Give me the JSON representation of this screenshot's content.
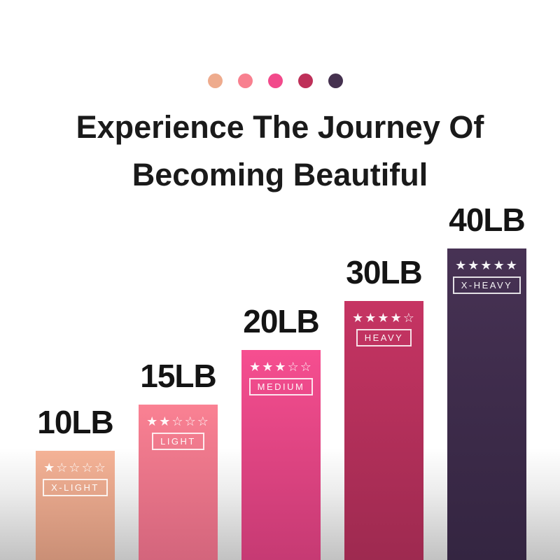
{
  "header": {
    "title_line1": "Experience The Journey Of",
    "title_line2": "Becoming Beautiful",
    "dot_colors": [
      "#EEAB8D",
      "#F8808F",
      "#F24A8B",
      "#BE3059",
      "#45314F"
    ]
  },
  "chart_data": {
    "type": "bar",
    "title": "Experience The Journey Of Becoming Beautiful",
    "categories": [
      "10LB",
      "15LB",
      "20LB",
      "30LB",
      "40LB"
    ],
    "values": [
      10,
      15,
      20,
      30,
      40
    ],
    "legend_position": "none",
    "grid": false,
    "bars": [
      {
        "label": "10LB",
        "weight_lb": 10,
        "stars_filled": 1,
        "stars_total": 5,
        "band_label": "X-LIGHT",
        "color_top": "#F4B296",
        "color_bottom": "#CA8F76"
      },
      {
        "label": "15LB",
        "weight_lb": 15,
        "stars_filled": 2,
        "stars_total": 5,
        "band_label": "LIGHT",
        "color_top": "#FA8193",
        "color_bottom": "#D3657C"
      },
      {
        "label": "20LB",
        "weight_lb": 20,
        "stars_filled": 3,
        "stars_total": 5,
        "band_label": "MEDIUM",
        "color_top": "#F64E90",
        "color_bottom": "#C63A73"
      },
      {
        "label": "30LB",
        "weight_lb": 30,
        "stars_filled": 4,
        "stars_total": 5,
        "band_label": "HEAVY",
        "color_top": "#C63463",
        "color_bottom": "#9E2A50"
      },
      {
        "label": "40LB",
        "weight_lb": 40,
        "stars_filled": 5,
        "stars_total": 5,
        "band_label": "X-HEAVY",
        "color_top": "#473254",
        "color_bottom": "#342541"
      }
    ],
    "icons": {
      "star_filled": "★",
      "star_empty": "☆"
    }
  }
}
